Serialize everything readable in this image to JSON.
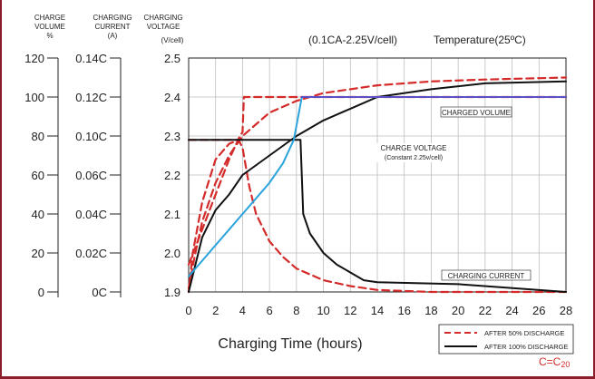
{
  "axes": {
    "volume": {
      "header": [
        "CHARGE",
        "VOLUME",
        "%"
      ],
      "ticks": [
        "0",
        "20",
        "40",
        "60",
        "80",
        "100",
        "120"
      ]
    },
    "current": {
      "header": [
        "CHARGING",
        "CURRENT",
        "(A)"
      ],
      "ticks": [
        "0C",
        "0.02C",
        "0.04C",
        "0.06C",
        "0.10C",
        "0.12C",
        "0.14C"
      ]
    },
    "voltage": {
      "header": [
        "CHARGING",
        "VOLTAGE",
        "(V/cell)"
      ],
      "ticks": [
        "1.9",
        "2.0",
        "2.1",
        "2.2",
        "2.3",
        "2.4",
        "2.5"
      ]
    }
  },
  "note_condition": "(0.1CA-2.25V/cell)",
  "note_temperature": "Temperature(25ºC)",
  "labels": {
    "charged_volume": "CHARGED VOLUME",
    "charge_voltage": "CHARGE VOLTAGE",
    "charge_voltage_sub": "(Constant 2.25v/cell)",
    "charging_current": "CHARGING CURRENT"
  },
  "legend": {
    "dashed": "AFTER 50% DISCHARGE",
    "solid": "AFTER 100% DISCHARGE"
  },
  "footnote": {
    "main": "C=C",
    "sub": "20"
  },
  "colors": {
    "red": "#d42a2a",
    "black": "#111111",
    "blue": "#2aa3dc",
    "purple": "#5a4fc4",
    "border": "#8b1e2b"
  },
  "chart_data": {
    "type": "line",
    "xlabel": "Charging Time (hours)",
    "x_ticks": [
      0,
      2,
      4,
      6,
      8,
      10,
      12,
      14,
      16,
      18,
      20,
      22,
      24,
      26,
      28
    ],
    "xlim": [
      0,
      28
    ],
    "ylim_voltage": [
      1.9,
      2.5
    ],
    "grid": true,
    "series": [
      {
        "id": "v50",
        "style": "dashed",
        "color": "#d42a2a",
        "points": [
          [
            0,
            1.91
          ],
          [
            0.5,
            2.0
          ],
          [
            1,
            2.08
          ],
          [
            2,
            2.18
          ],
          [
            3,
            2.25
          ],
          [
            4,
            2.3
          ],
          [
            6,
            2.36
          ],
          [
            8,
            2.39
          ],
          [
            10,
            2.41
          ],
          [
            14,
            2.43
          ],
          [
            18,
            2.44
          ],
          [
            22,
            2.445
          ],
          [
            28,
            2.45
          ]
        ]
      },
      {
        "id": "i50",
        "style": "dashed",
        "color": "#d42a2a",
        "points": [
          [
            0,
            1.9
          ],
          [
            0.3,
            2.0
          ],
          [
            1,
            2.13
          ],
          [
            2,
            2.24
          ],
          [
            3,
            2.28
          ],
          [
            3.7,
            2.29
          ],
          [
            4,
            2.27
          ],
          [
            4.5,
            2.17
          ],
          [
            5,
            2.1
          ],
          [
            6,
            2.03
          ],
          [
            7,
            1.99
          ],
          [
            8,
            1.96
          ],
          [
            10,
            1.93
          ],
          [
            12,
            1.915
          ],
          [
            14,
            1.905
          ],
          [
            18,
            1.9
          ],
          [
            28,
            1.9
          ]
        ]
      },
      {
        "id": "c50",
        "style": "dashed",
        "color": "#d42a2a",
        "points": [
          [
            0,
            1.97
          ],
          [
            1,
            2.06
          ],
          [
            2,
            2.15
          ],
          [
            3,
            2.24
          ],
          [
            3.8,
            2.3
          ],
          [
            4,
            2.31
          ],
          [
            4.1,
            2.4
          ],
          [
            28,
            2.4
          ]
        ]
      },
      {
        "id": "cur50",
        "style": "dashed",
        "color": "#d42a2a",
        "points": [
          [
            0,
            2.29
          ],
          [
            4,
            2.29
          ]
        ]
      },
      {
        "id": "v100",
        "style": "solid",
        "color": "#111111",
        "points": [
          [
            0,
            1.9
          ],
          [
            1,
            2.04
          ],
          [
            2,
            2.11
          ],
          [
            3,
            2.15
          ],
          [
            4,
            2.2
          ],
          [
            6,
            2.25
          ],
          [
            8,
            2.3
          ],
          [
            10,
            2.34
          ],
          [
            12,
            2.37
          ],
          [
            14,
            2.4
          ],
          [
            18,
            2.42
          ],
          [
            22,
            2.435
          ],
          [
            28,
            2.44
          ]
        ]
      },
      {
        "id": "i100",
        "style": "solid",
        "color": "#111111",
        "points": [
          [
            0,
            2.29
          ],
          [
            8.3,
            2.29
          ],
          [
            8.5,
            2.1
          ],
          [
            9,
            2.05
          ],
          [
            10,
            2.0
          ],
          [
            11,
            1.97
          ],
          [
            12,
            1.95
          ],
          [
            13,
            1.93
          ],
          [
            14,
            1.925
          ],
          [
            20,
            1.92
          ],
          [
            28,
            1.9
          ]
        ]
      },
      {
        "id": "c100",
        "style": "solid",
        "color": "#2aa3dc",
        "points": [
          [
            0,
            1.94
          ],
          [
            1,
            1.98
          ],
          [
            2,
            2.02
          ],
          [
            3,
            2.06
          ],
          [
            4,
            2.1
          ],
          [
            5,
            2.14
          ],
          [
            6,
            2.18
          ],
          [
            7,
            2.23
          ],
          [
            7.8,
            2.29
          ],
          [
            8.4,
            2.4
          ]
        ]
      },
      {
        "id": "c100flat",
        "style": "solid",
        "color": "#5a4fc4",
        "points": [
          [
            8.4,
            2.4
          ],
          [
            28,
            2.4
          ]
        ]
      }
    ]
  }
}
